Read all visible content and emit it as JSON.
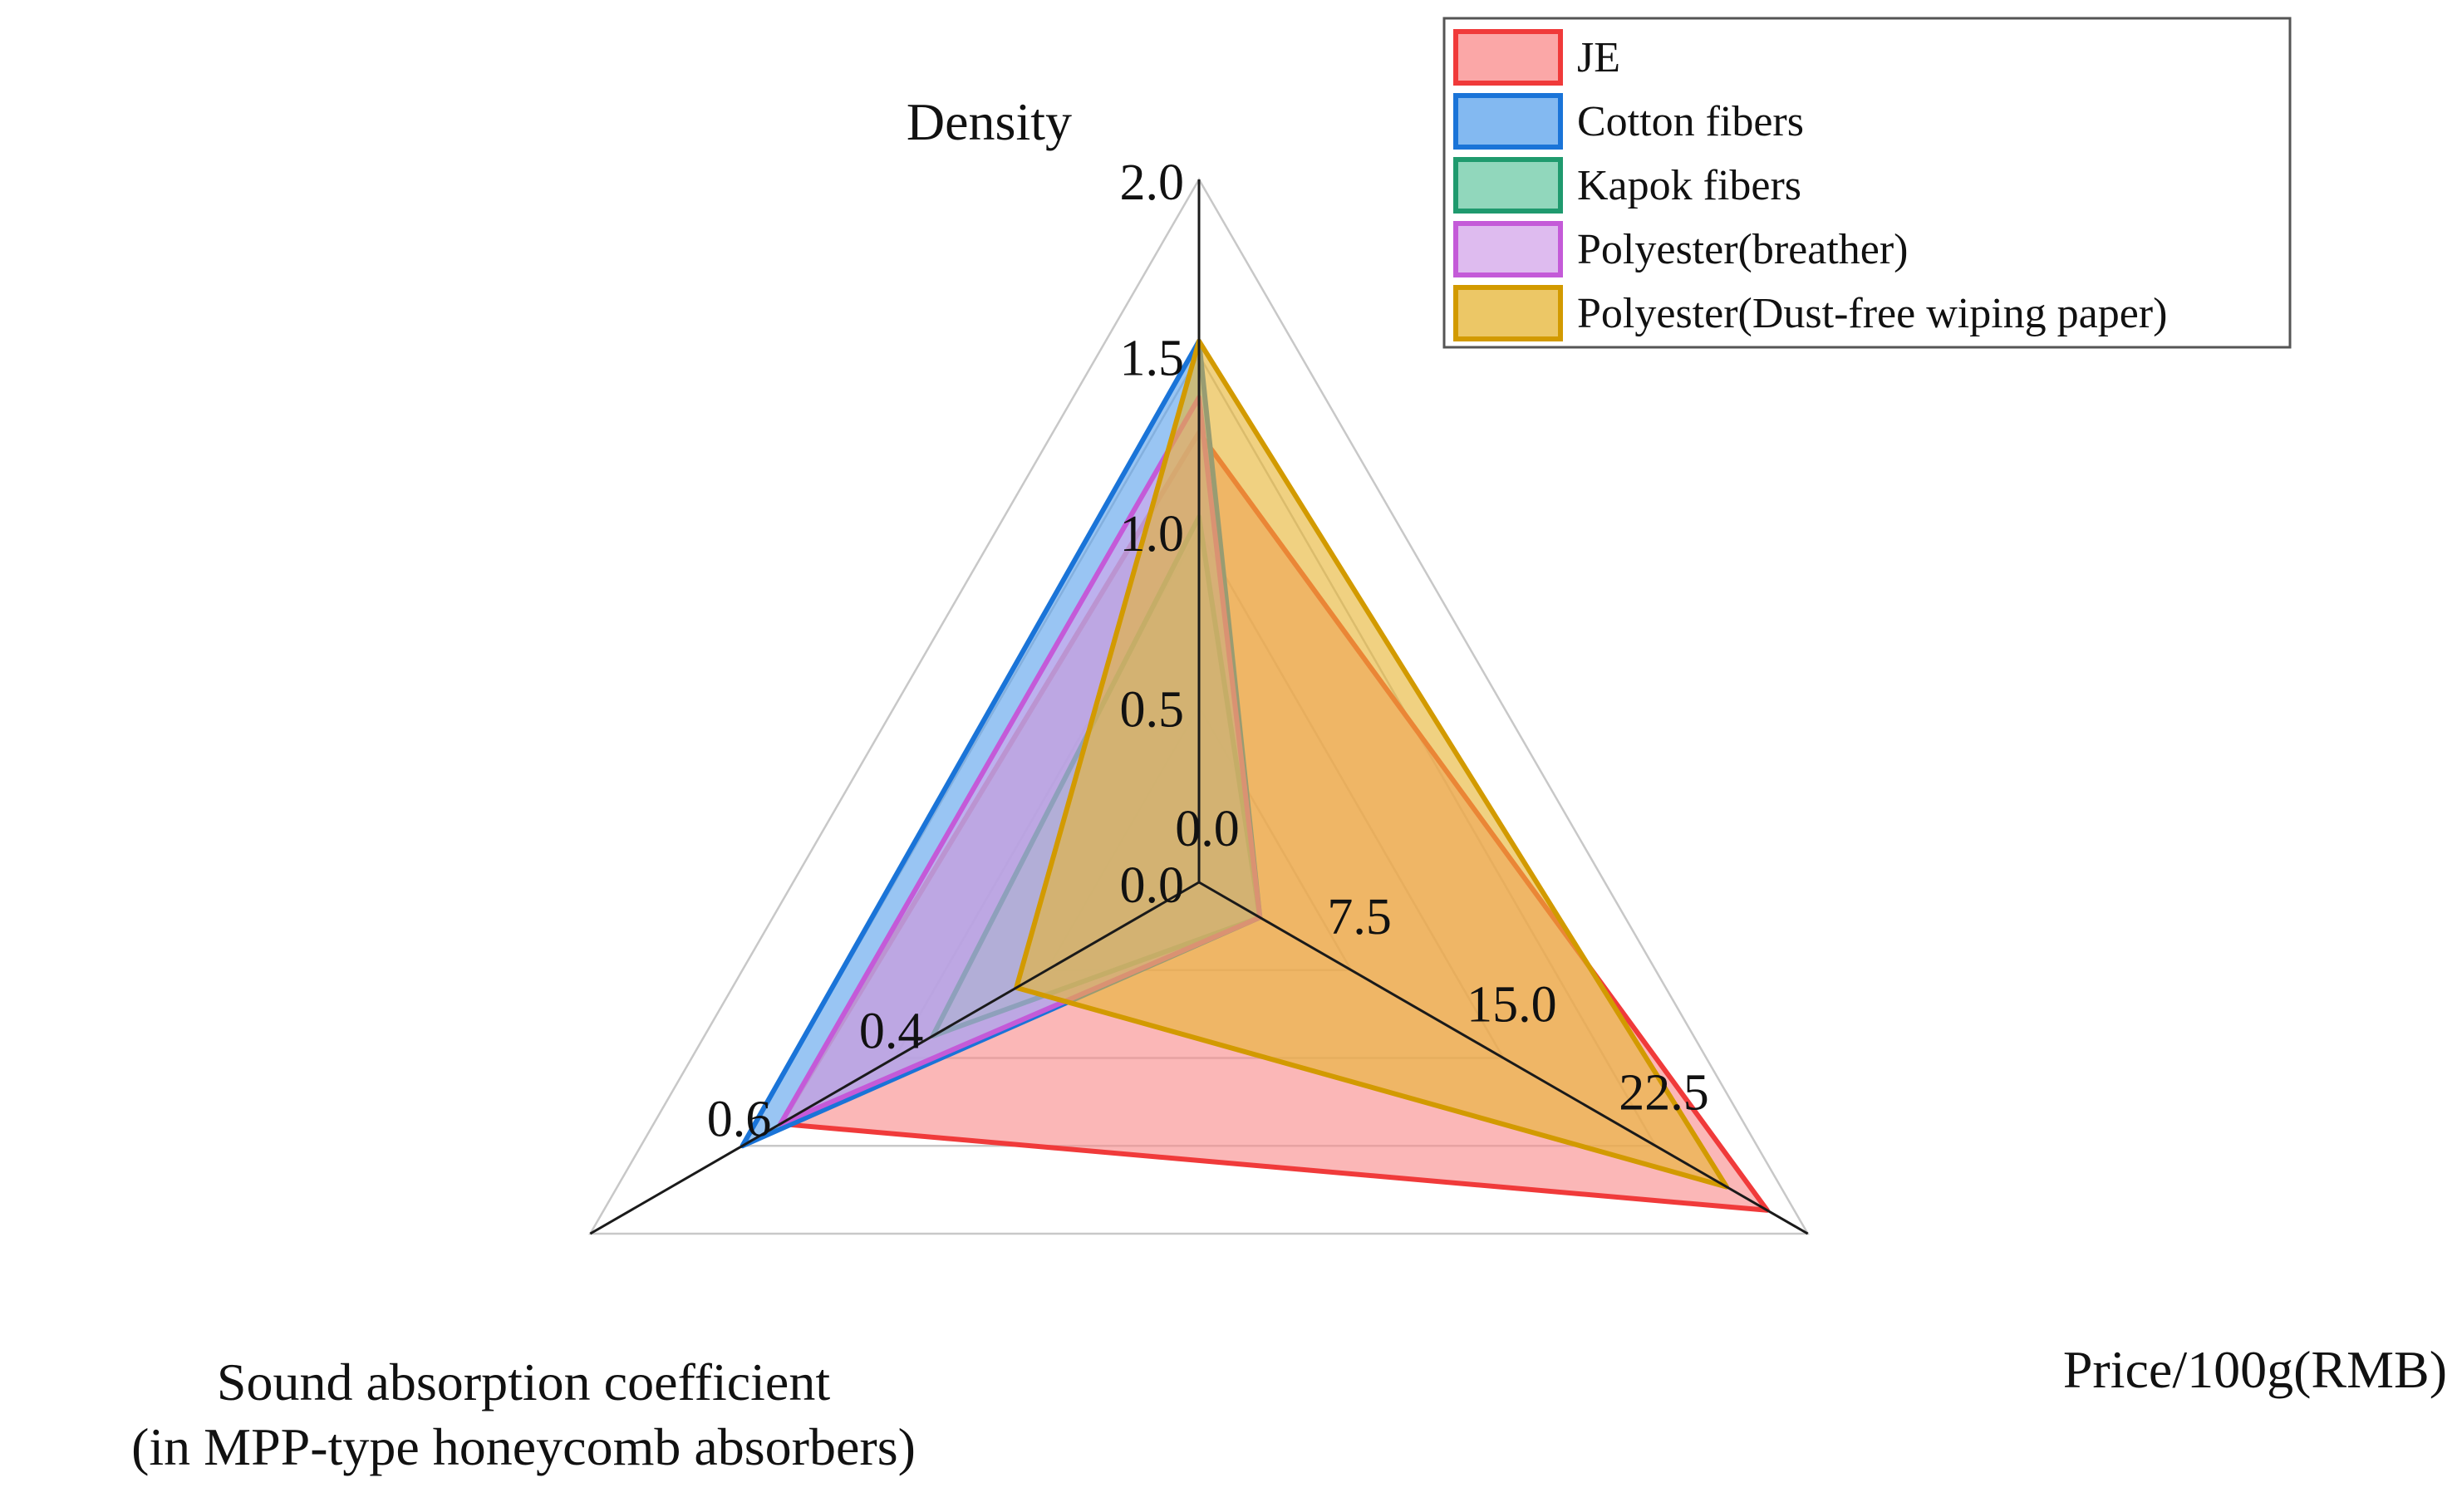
{
  "chart_data": {
    "type": "radar",
    "axes": [
      {
        "name": "Density",
        "label_lines": [
          "Density"
        ],
        "range": [
          0.0,
          2.0
        ],
        "ticks": [
          "0.0",
          "0.5",
          "1.0",
          "1.5",
          "2.0"
        ]
      },
      {
        "name": "Price/100g(RMB)",
        "label_lines": [
          "Price/100g(RMB)"
        ],
        "range": [
          0.0,
          30.0
        ],
        "ticks": [
          "0.0",
          "7.5",
          "15.0",
          "22.5"
        ]
      },
      {
        "name": "Sound absorption coefficient (in MPP-type honeycomb absorbers)",
        "label_lines": [
          "Sound absorption coefficient",
          "(in MPP-type honeycomb absorbers)"
        ],
        "range": [
          0.0,
          0.8
        ],
        "ticks": [
          "0.4",
          "0.6"
        ]
      }
    ],
    "series": [
      {
        "name": "JE",
        "values": [
          1.28,
          28.0,
          0.55
        ],
        "color": "#f03a3a",
        "fill": "#f98a8a"
      },
      {
        "name": "Cotton fibers",
        "values": [
          1.54,
          3.0,
          0.6
        ],
        "color": "#1a74d8",
        "fill": "#5aa2ec"
      },
      {
        "name": "Kapok fibers",
        "values": [
          1.04,
          3.0,
          0.35
        ],
        "color": "#1f9a6e",
        "fill": "#6ccaa6"
      },
      {
        "name": "Polyester(breather)",
        "values": [
          1.38,
          3.0,
          0.55
        ],
        "color": "#c45ad8",
        "fill": "#d3a4ea"
      },
      {
        "name": "Polyester(Dust-free wiping paper)",
        "values": [
          1.54,
          26.0,
          0.24
        ],
        "color": "#d29a00",
        "fill": "#e6b433"
      }
    ],
    "grid": true,
    "legend_position": "top-right"
  }
}
